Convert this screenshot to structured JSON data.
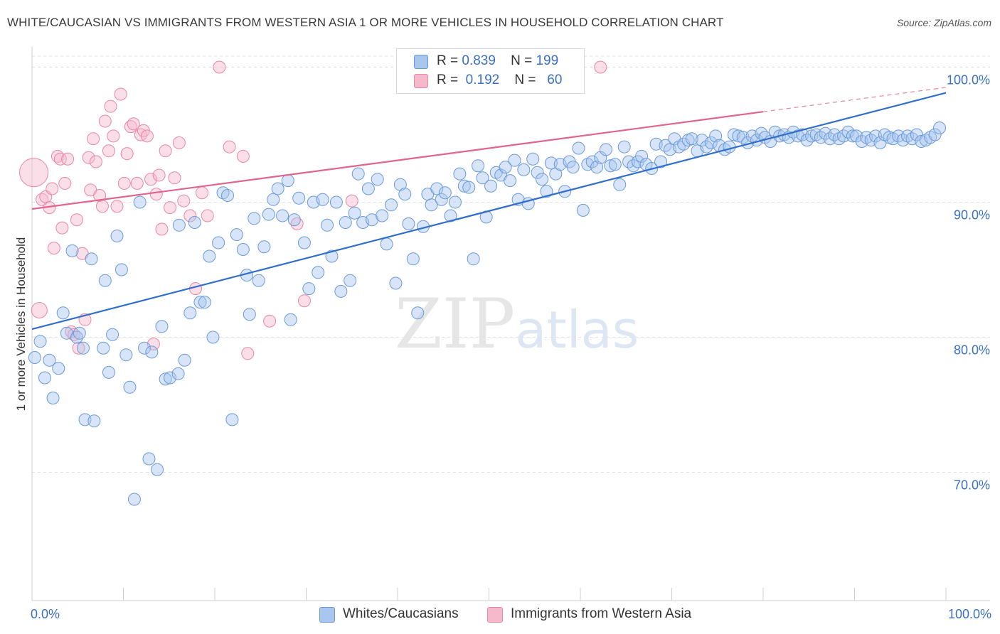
{
  "header": {
    "title": "WHITE/CAUCASIAN VS IMMIGRANTS FROM WESTERN ASIA 1 OR MORE VEHICLES IN HOUSEHOLD CORRELATION CHART",
    "source": "Source: ZipAtlas.com"
  },
  "watermark": {
    "zip": "ZIP",
    "atlas": "atlas"
  },
  "legend": {
    "rows": [
      {
        "r_label": "R =",
        "r_value": "0.839",
        "n_label": "N =",
        "n_value": "199"
      },
      {
        "r_label": "R =",
        "r_value": "0.192",
        "n_label": "N =",
        "n_value": "60"
      }
    ]
  },
  "bottom_legend": {
    "series1": "Whites/Caucasians",
    "series2": "Immigrants from Western Asia"
  },
  "colors": {
    "blue_fill": "#a9c6ef",
    "blue_stroke": "#6b9ad8",
    "blue_line": "#2f6fcb",
    "pink_fill": "#f6b9cb",
    "pink_stroke": "#e887a6",
    "pink_line": "#e0648c",
    "axis_text": "#3a70c4",
    "grid": "#e3e3e3"
  },
  "chart_data": {
    "type": "scatter",
    "title": "WHITE/CAUCASIAN VS IMMIGRANTS FROM WESTERN ASIA 1 OR MORE VEHICLES IN HOUSEHOLD CORRELATION CHART",
    "xlabel": "",
    "ylabel": "1 or more Vehicles in Household",
    "xlim": [
      0,
      100
    ],
    "ylim": [
      60.5,
      101.5
    ],
    "x_tick_labels": [
      "0.0%",
      "100.0%"
    ],
    "y_ticks": [
      70,
      80,
      90,
      100
    ],
    "y_tick_labels": [
      "70.0%",
      "80.0%",
      "90.0%",
      "100.0%"
    ],
    "grid": "horizontal dashed",
    "legend_placement": "top-center",
    "series": [
      {
        "name": "Whites/Caucasians",
        "r": 0.839,
        "n": 199,
        "trend": {
          "x": [
            0,
            100
          ],
          "y": [
            80.6,
            98.1
          ],
          "dashed_from": null
        },
        "points": [
          [
            0.3,
            78.5
          ],
          [
            0.9,
            79.7
          ],
          [
            1.4,
            77.0
          ],
          [
            1.9,
            78.3
          ],
          [
            2.3,
            75.5
          ],
          [
            2.9,
            77.7
          ],
          [
            3.4,
            81.8
          ],
          [
            3.8,
            80.3
          ],
          [
            4.4,
            86.4
          ],
          [
            4.9,
            80.0
          ],
          [
            5.2,
            80.3
          ],
          [
            5.6,
            79.2
          ],
          [
            5.8,
            73.9
          ],
          [
            6.5,
            85.8
          ],
          [
            6.8,
            73.8
          ],
          [
            7.8,
            79.2
          ],
          [
            8.0,
            84.2
          ],
          [
            8.4,
            77.4
          ],
          [
            8.8,
            80.2
          ],
          [
            9.3,
            87.5
          ],
          [
            9.8,
            85.0
          ],
          [
            10.3,
            78.7
          ],
          [
            10.7,
            76.3
          ],
          [
            11.2,
            68.0
          ],
          [
            11.8,
            90.0
          ],
          [
            12.3,
            79.2
          ],
          [
            12.8,
            71.0
          ],
          [
            13.1,
            78.9
          ],
          [
            13.7,
            70.2
          ],
          [
            14.2,
            80.8
          ],
          [
            14.6,
            76.9
          ],
          [
            15.1,
            77.0
          ],
          [
            16.0,
            77.3
          ],
          [
            16.1,
            88.3
          ],
          [
            16.7,
            78.3
          ],
          [
            17.3,
            81.8
          ],
          [
            17.8,
            88.5
          ],
          [
            18.4,
            82.6
          ],
          [
            18.9,
            82.6
          ],
          [
            19.4,
            86.0
          ],
          [
            19.8,
            80.0
          ],
          [
            20.4,
            87.0
          ],
          [
            20.9,
            90.7
          ],
          [
            21.4,
            90.5
          ],
          [
            21.9,
            73.9
          ],
          [
            22.4,
            87.6
          ],
          [
            23.1,
            86.5
          ],
          [
            23.5,
            84.6
          ],
          [
            23.8,
            81.7
          ],
          [
            24.3,
            88.8
          ],
          [
            24.8,
            84.2
          ],
          [
            25.4,
            86.7
          ],
          [
            25.9,
            89.1
          ],
          [
            26.4,
            90.2
          ],
          [
            26.9,
            91.0
          ],
          [
            27.4,
            89.0
          ],
          [
            28.0,
            91.6
          ],
          [
            28.3,
            81.3
          ],
          [
            28.7,
            88.7
          ],
          [
            29.2,
            90.3
          ],
          [
            29.8,
            87.0
          ],
          [
            30.3,
            83.6
          ],
          [
            30.8,
            90.0
          ],
          [
            31.3,
            84.8
          ],
          [
            31.8,
            90.2
          ],
          [
            32.3,
            88.3
          ],
          [
            32.8,
            86.0
          ],
          [
            33.3,
            90.0
          ],
          [
            33.8,
            83.4
          ],
          [
            34.3,
            88.5
          ],
          [
            34.8,
            84.2
          ],
          [
            35.3,
            89.2
          ],
          [
            35.7,
            92.1
          ],
          [
            36.2,
            88.5
          ],
          [
            36.8,
            91.0
          ],
          [
            37.2,
            88.7
          ],
          [
            37.8,
            91.7
          ],
          [
            38.3,
            89.0
          ],
          [
            38.8,
            86.9
          ],
          [
            39.3,
            89.8
          ],
          [
            39.8,
            84.0
          ],
          [
            40.3,
            91.3
          ],
          [
            40.8,
            90.6
          ],
          [
            41.2,
            88.4
          ],
          [
            41.7,
            85.8
          ],
          [
            42.2,
            81.8
          ],
          [
            42.8,
            88.2
          ],
          [
            43.3,
            90.6
          ],
          [
            43.7,
            89.8
          ],
          [
            44.3,
            91.0
          ],
          [
            44.8,
            90.2
          ],
          [
            45.2,
            90.7
          ],
          [
            45.8,
            89.0
          ],
          [
            46.3,
            90.0
          ],
          [
            46.8,
            92.1
          ],
          [
            47.3,
            91.2
          ],
          [
            47.8,
            91.1
          ],
          [
            48.3,
            85.8
          ],
          [
            48.8,
            92.7
          ],
          [
            49.3,
            91.8
          ],
          [
            49.7,
            88.9
          ],
          [
            50.2,
            91.2
          ],
          [
            50.8,
            92.2
          ],
          [
            51.3,
            92.0
          ],
          [
            51.8,
            92.6
          ],
          [
            52.3,
            91.6
          ],
          [
            52.8,
            93.1
          ],
          [
            53.2,
            90.2
          ],
          [
            53.8,
            92.4
          ],
          [
            54.3,
            89.9
          ],
          [
            54.8,
            93.2
          ],
          [
            55.3,
            92.2
          ],
          [
            55.8,
            91.7
          ],
          [
            56.3,
            90.8
          ],
          [
            56.8,
            92.9
          ],
          [
            57.3,
            92.1
          ],
          [
            57.8,
            92.8
          ],
          [
            58.3,
            90.8
          ],
          [
            58.8,
            93.0
          ],
          [
            59.2,
            92.6
          ],
          [
            59.8,
            94.0
          ],
          [
            60.3,
            89.4
          ],
          [
            60.8,
            92.8
          ],
          [
            61.3,
            93.0
          ],
          [
            61.8,
            92.6
          ],
          [
            62.2,
            93.3
          ],
          [
            62.8,
            93.9
          ],
          [
            63.3,
            92.7
          ],
          [
            63.8,
            92.8
          ],
          [
            64.3,
            91.3
          ],
          [
            64.8,
            94.1
          ],
          [
            65.3,
            93.0
          ],
          [
            65.8,
            92.7
          ],
          [
            66.3,
            93.0
          ],
          [
            66.7,
            93.4
          ],
          [
            67.2,
            92.8
          ],
          [
            67.8,
            92.5
          ],
          [
            68.3,
            94.3
          ],
          [
            68.8,
            93.0
          ],
          [
            69.3,
            94.2
          ],
          [
            69.8,
            93.9
          ],
          [
            70.3,
            94.7
          ],
          [
            70.8,
            94.1
          ],
          [
            71.3,
            94.3
          ],
          [
            71.8,
            94.6
          ],
          [
            72.2,
            94.7
          ],
          [
            72.8,
            93.8
          ],
          [
            73.3,
            94.6
          ],
          [
            73.8,
            94.1
          ],
          [
            74.3,
            94.4
          ],
          [
            74.8,
            94.9
          ],
          [
            75.2,
            94.2
          ],
          [
            75.8,
            93.9
          ],
          [
            76.3,
            94.1
          ],
          [
            76.8,
            95.0
          ],
          [
            77.3,
            94.9
          ],
          [
            77.8,
            94.8
          ],
          [
            78.3,
            94.4
          ],
          [
            78.8,
            94.9
          ],
          [
            79.3,
            94.6
          ],
          [
            79.8,
            95.1
          ],
          [
            80.2,
            94.8
          ],
          [
            80.8,
            94.5
          ],
          [
            81.3,
            95.2
          ],
          [
            81.8,
            94.9
          ],
          [
            82.3,
            95.0
          ],
          [
            82.8,
            94.8
          ],
          [
            83.3,
            95.2
          ],
          [
            83.8,
            94.9
          ],
          [
            84.3,
            95.0
          ],
          [
            84.8,
            94.6
          ],
          [
            85.3,
            94.9
          ],
          [
            85.8,
            95.0
          ],
          [
            86.3,
            94.8
          ],
          [
            86.8,
            95.1
          ],
          [
            87.3,
            94.7
          ],
          [
            87.8,
            95.0
          ],
          [
            88.3,
            94.7
          ],
          [
            88.8,
            94.9
          ],
          [
            89.3,
            95.2
          ],
          [
            89.8,
            94.9
          ],
          [
            90.2,
            94.9
          ],
          [
            90.8,
            94.5
          ],
          [
            91.3,
            94.8
          ],
          [
            91.8,
            94.6
          ],
          [
            92.3,
            94.9
          ],
          [
            92.8,
            94.4
          ],
          [
            93.3,
            95.0
          ],
          [
            93.8,
            94.8
          ],
          [
            94.2,
            94.7
          ],
          [
            94.8,
            94.9
          ],
          [
            95.3,
            94.6
          ],
          [
            95.8,
            94.9
          ],
          [
            96.3,
            94.7
          ],
          [
            96.8,
            95.0
          ],
          [
            97.3,
            94.5
          ],
          [
            97.8,
            94.6
          ],
          [
            98.3,
            94.8
          ],
          [
            98.8,
            95.0
          ],
          [
            99.3,
            95.5
          ]
        ]
      },
      {
        "name": "Immigrants from Western Asia",
        "r": 0.192,
        "n": 60,
        "trend": {
          "x": [
            0,
            80,
            100
          ],
          "y": [
            89.5,
            96.7,
            98.5
          ],
          "dashed_from": 80
        },
        "points": [
          [
            0.2,
            92.2
          ],
          [
            0.8,
            82.0
          ],
          [
            1.1,
            90.2
          ],
          [
            1.5,
            90.4
          ],
          [
            1.9,
            89.6
          ],
          [
            2.2,
            91.0
          ],
          [
            2.4,
            86.6
          ],
          [
            2.8,
            93.4
          ],
          [
            3.1,
            93.2
          ],
          [
            3.3,
            88.1
          ],
          [
            3.6,
            91.4
          ],
          [
            3.9,
            93.2
          ],
          [
            4.3,
            80.4
          ],
          [
            4.6,
            80.2
          ],
          [
            4.9,
            88.7
          ],
          [
            5.1,
            79.2
          ],
          [
            5.5,
            86.2
          ],
          [
            5.8,
            81.3
          ],
          [
            6.2,
            93.3
          ],
          [
            6.4,
            90.9
          ],
          [
            6.7,
            94.7
          ],
          [
            7.0,
            93.0
          ],
          [
            7.4,
            90.5
          ],
          [
            7.7,
            89.7
          ],
          [
            8.0,
            96.0
          ],
          [
            8.4,
            93.8
          ],
          [
            8.6,
            97.1
          ],
          [
            8.9,
            94.9
          ],
          [
            9.3,
            89.7
          ],
          [
            9.7,
            98.0
          ],
          [
            10.1,
            91.4
          ],
          [
            10.4,
            93.6
          ],
          [
            10.8,
            95.6
          ],
          [
            11.1,
            95.8
          ],
          [
            11.5,
            91.4
          ],
          [
            11.9,
            95.0
          ],
          [
            12.2,
            95.3
          ],
          [
            12.6,
            94.9
          ],
          [
            13.0,
            91.7
          ],
          [
            13.3,
            79.5
          ],
          [
            13.6,
            90.6
          ],
          [
            13.9,
            92.0
          ],
          [
            14.2,
            88.0
          ],
          [
            14.6,
            93.8
          ],
          [
            15.1,
            89.6
          ],
          [
            15.6,
            91.8
          ],
          [
            16.1,
            94.4
          ],
          [
            16.6,
            90.1
          ],
          [
            17.3,
            89.0
          ],
          [
            17.9,
            83.6
          ],
          [
            18.6,
            90.7
          ],
          [
            19.2,
            89.0
          ],
          [
            20.5,
            100.0
          ],
          [
            21.6,
            94.1
          ],
          [
            23.1,
            93.4
          ],
          [
            23.6,
            78.8
          ],
          [
            26.0,
            81.2
          ],
          [
            29.0,
            88.4
          ],
          [
            29.8,
            82.7
          ],
          [
            35.0,
            90.1
          ],
          [
            62.2,
            100.0
          ]
        ]
      }
    ]
  }
}
